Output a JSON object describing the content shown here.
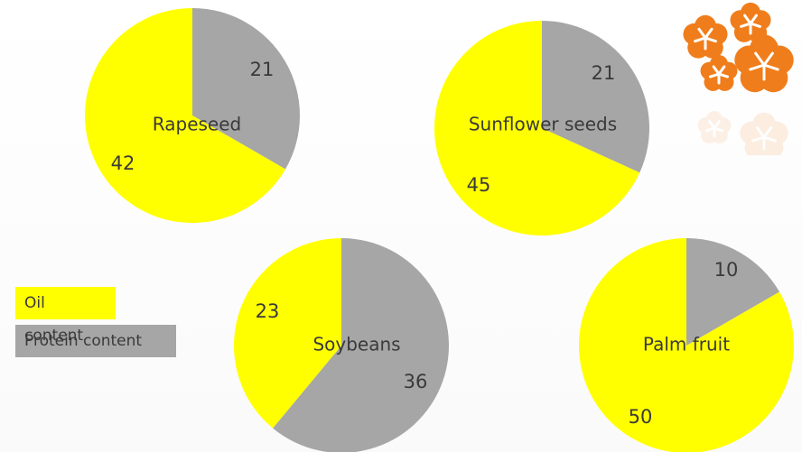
{
  "colors": {
    "oil": "#ffff00",
    "protein": "#a6a6a6",
    "text": "#3a3a3a",
    "logo": "#f07d1b"
  },
  "legend": {
    "oil_label": "Oil content",
    "protein_label": "Protein content"
  },
  "chart_data": [
    {
      "type": "pie",
      "title": "Rapeseed",
      "slices": [
        {
          "name": "Protein content",
          "value": 21
        },
        {
          "name": "Oil content",
          "value": 42
        }
      ]
    },
    {
      "type": "pie",
      "title": "Sunflower seeds",
      "slices": [
        {
          "name": "Protein content",
          "value": 21
        },
        {
          "name": "Oil content",
          "value": 45
        }
      ]
    },
    {
      "type": "pie",
      "title": "Soybeans",
      "slices": [
        {
          "name": "Protein content",
          "value": 36
        },
        {
          "name": "Oil content",
          "value": 23
        }
      ]
    },
    {
      "type": "pie",
      "title": "Palm fruit",
      "slices": [
        {
          "name": "Protein content",
          "value": 10
        },
        {
          "name": "Oil content",
          "value": 50
        }
      ]
    }
  ]
}
